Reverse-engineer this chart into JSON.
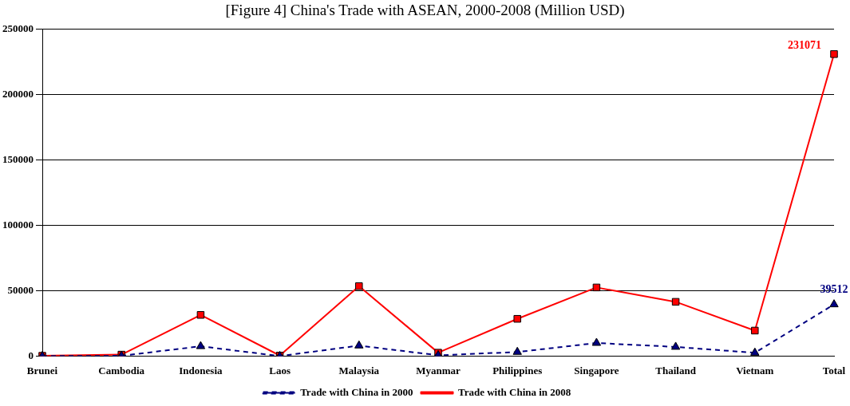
{
  "chart_data": {
    "type": "line",
    "title": "[Figure 4] China's Trade with ASEAN, 2000-2008 (Million USD)",
    "categories": [
      "Brunei",
      "Cambodia",
      "Indonesia",
      "Laos",
      "Malaysia",
      "Myanmar",
      "Philippines",
      "Singapore",
      "Thailand",
      "Vietnam",
      "Total"
    ],
    "series": [
      {
        "name": "Trade with China in 2000",
        "color": "#000080",
        "marker": "triangle",
        "line_style": "dashed",
        "values": [
          0,
          200,
          7500,
          0,
          8000,
          600,
          3100,
          10000,
          7000,
          2500,
          39512
        ],
        "value_labels": [
          null,
          null,
          null,
          null,
          null,
          null,
          null,
          null,
          null,
          null,
          "39512"
        ]
      },
      {
        "name": "Trade with China in 2008",
        "color": "#ff0000",
        "marker": "square",
        "line_style": "solid",
        "values": [
          200,
          1100,
          31500,
          400,
          53500,
          2600,
          28500,
          52500,
          41500,
          19500,
          231071
        ],
        "value_labels": [
          null,
          null,
          null,
          null,
          null,
          null,
          null,
          null,
          null,
          null,
          "231071"
        ]
      }
    ],
    "ylim": [
      0,
      250000
    ],
    "yticks": [
      0,
      50000,
      100000,
      150000,
      200000,
      250000
    ],
    "grid": "y",
    "legend": "bottom"
  }
}
